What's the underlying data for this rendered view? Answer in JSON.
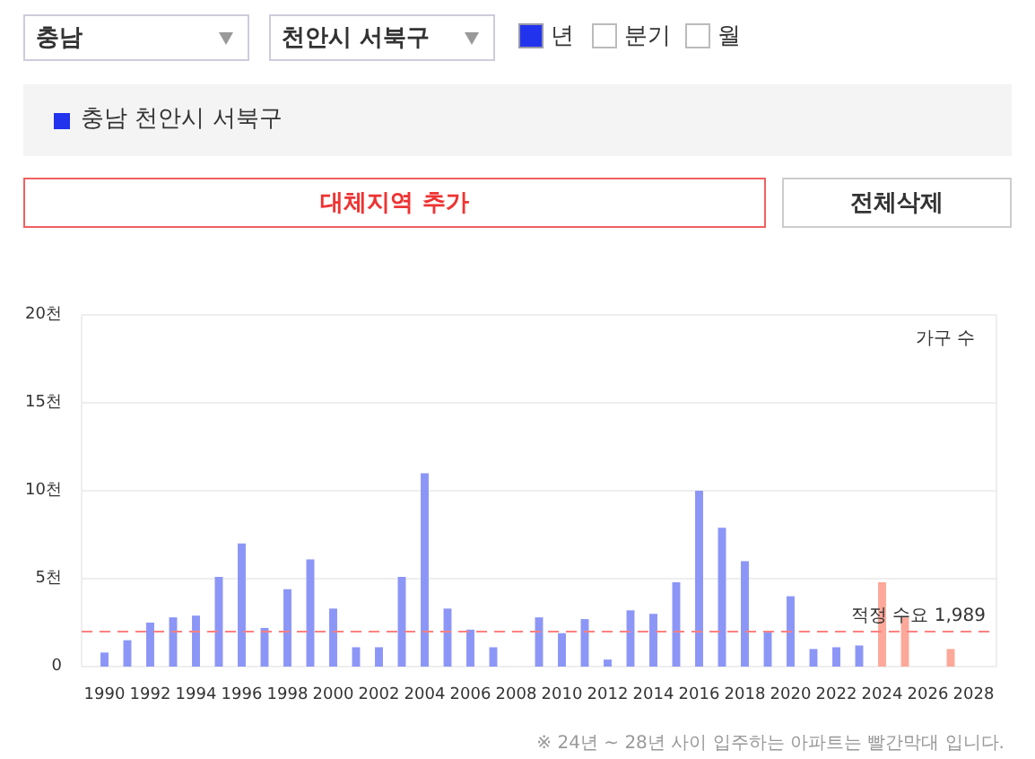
{
  "chart_data": {
    "type": "bar",
    "ylabel": "가구 수",
    "x": [
      1990,
      1991,
      1992,
      1993,
      1994,
      1995,
      1996,
      1997,
      1998,
      1999,
      2000,
      2001,
      2002,
      2003,
      2004,
      2005,
      2006,
      2007,
      2008,
      2009,
      2010,
      2011,
      2012,
      2013,
      2014,
      2015,
      2016,
      2017,
      2018,
      2019,
      2020,
      2021,
      2022,
      2023,
      2024,
      2025,
      2026,
      2027
    ],
    "values": [
      0.8,
      1.5,
      2.5,
      2.8,
      2.9,
      5.1,
      7.0,
      2.2,
      4.4,
      6.1,
      3.3,
      1.1,
      1.1,
      5.1,
      11.0,
      3.3,
      2.1,
      1.1,
      null,
      2.8,
      1.9,
      2.7,
      0.4,
      3.2,
      3.0,
      4.8,
      10.0,
      7.9,
      6.0,
      2.0,
      4.0,
      1.0,
      1.1,
      1.2,
      4.8,
      2.8,
      null,
      1.0
    ],
    "colors": [
      "#8c96f7",
      "#8c96f7",
      "#8c96f7",
      "#8c96f7",
      "#8c96f7",
      "#8c96f7",
      "#8c96f7",
      "#8c96f7",
      "#8c96f7",
      "#8c96f7",
      "#8c96f7",
      "#8c96f7",
      "#8c96f7",
      "#8c96f7",
      "#8c96f7",
      "#8c96f7",
      "#8c96f7",
      "#8c96f7",
      "#8c96f7",
      "#8c96f7",
      "#8c96f7",
      "#8c96f7",
      "#8c96f7",
      "#8c96f7",
      "#8c96f7",
      "#8c96f7",
      "#8c96f7",
      "#8c96f7",
      "#8c96f7",
      "#8c96f7",
      "#8c96f7",
      "#8c96f7",
      "#8c96f7",
      "#8c96f7",
      "#fca89a",
      "#fca89a",
      "#fca89a",
      "#fca89a"
    ],
    "xlim": [
      1989,
      2029
    ],
    "xticks": [
      1990,
      1992,
      1994,
      1996,
      1998,
      2000,
      2002,
      2004,
      2006,
      2008,
      2010,
      2012,
      2014,
      2016,
      2018,
      2020,
      2022,
      2024,
      2026,
      2028
    ],
    "ylim": [
      0,
      20
    ],
    "yticks": [
      0,
      {
        "value": 5,
        "label": "5천"
      },
      {
        "value": 10,
        "label": "10천"
      },
      {
        "value": 15,
        "label": "15천"
      },
      {
        "value": 20,
        "label": "20천"
      }
    ],
    "grid": "y",
    "ref_lines": [
      {
        "axis": "y",
        "value": 1.989,
        "label": "적정 수요 1,989",
        "color": "#ff8080",
        "line_style": "dashed"
      }
    ],
    "annotations": [
      "충남",
      "천안시 서북구",
      "년",
      "분기",
      "월",
      "충남 천안시 서북구",
      "대체지역 추가",
      "전체삭제",
      "※ 24년 ~ 28년 사이 입주하는 아파트는 빨간막대 입니다."
    ]
  }
}
